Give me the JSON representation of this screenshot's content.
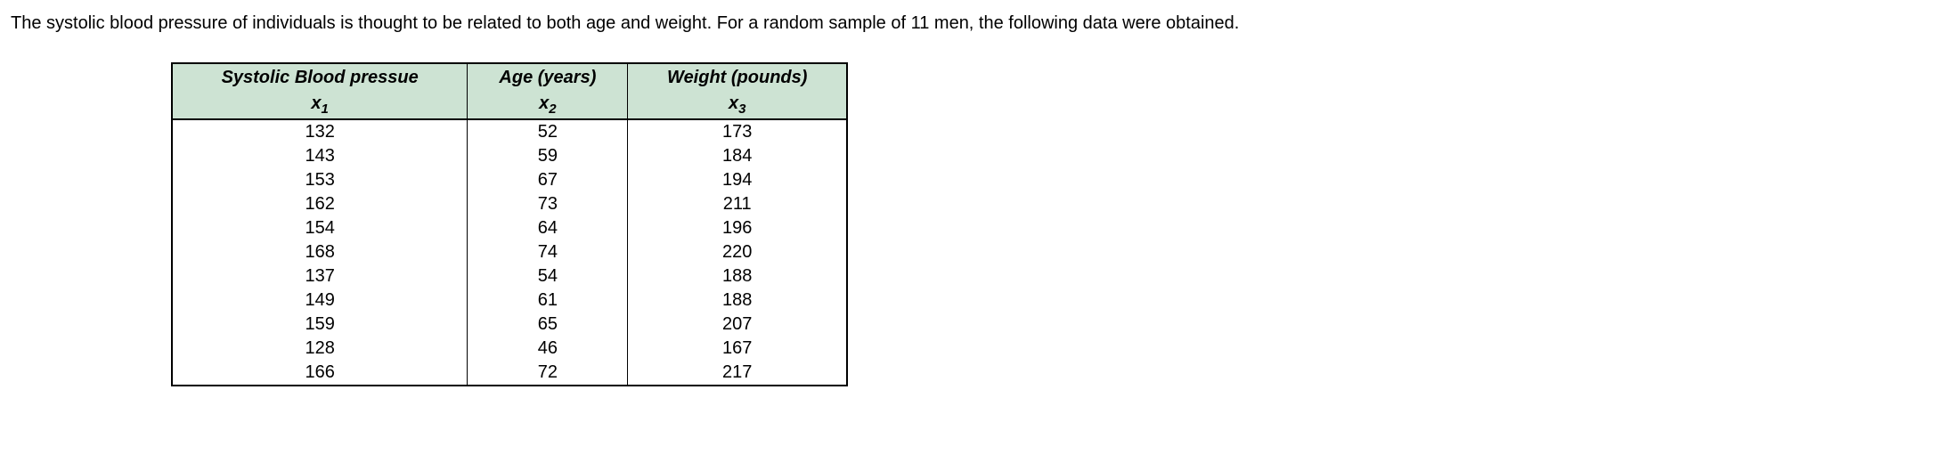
{
  "intro": "The systolic blood pressure of individuals is thought to be related to both age and weight. For a random sample of 11 men, the following data were obtained.",
  "table": {
    "columns": [
      {
        "header": "Systolic Blood pressue",
        "subheader_var": "x",
        "subheader_sub": "1"
      },
      {
        "header": "Age (years)",
        "subheader_var": "x",
        "subheader_sub": "2"
      },
      {
        "header": "Weight (pounds)",
        "subheader_var": "x",
        "subheader_sub": "3"
      }
    ],
    "rows": [
      [
        132,
        52,
        173
      ],
      [
        143,
        59,
        184
      ],
      [
        153,
        67,
        194
      ],
      [
        162,
        73,
        211
      ],
      [
        154,
        64,
        196
      ],
      [
        168,
        74,
        220
      ],
      [
        137,
        54,
        188
      ],
      [
        149,
        61,
        188
      ],
      [
        159,
        65,
        207
      ],
      [
        128,
        46,
        167
      ],
      [
        166,
        72,
        217
      ]
    ],
    "header_bg_color": "#cde3d3",
    "border_color": "#000000",
    "text_color": "#000000",
    "font_family": "Verdana, Geneva, sans-serif",
    "header_fontsize": 20,
    "cell_fontsize": 20
  },
  "background_color": "#ffffff"
}
